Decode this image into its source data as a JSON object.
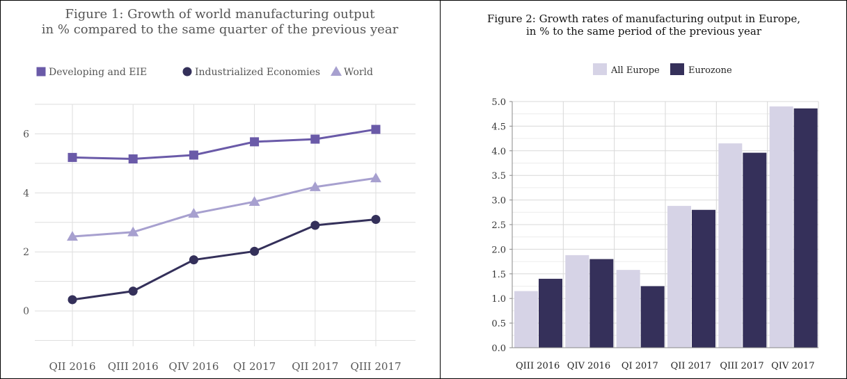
{
  "chart_data": [
    {
      "type": "line",
      "title_line1": "Figure 1: Growth of world manufacturing output",
      "title_line2": "in % compared to the same quarter of the previous year",
      "categories": [
        "QII 2016",
        "QIII 2016",
        "QIV 2016",
        "QI 2017",
        "QII 2017",
        "QIII 2017"
      ],
      "series": [
        {
          "name": "Developing and EIE",
          "values": [
            5.2,
            5.15,
            5.28,
            5.73,
            5.82,
            6.15
          ],
          "color": "#6a5aa8",
          "marker": "square"
        },
        {
          "name": "Industrialized Economies",
          "values": [
            0.38,
            0.67,
            1.73,
            2.02,
            2.9,
            3.1
          ],
          "color": "#34305a",
          "marker": "circle"
        },
        {
          "name": "World",
          "values": [
            2.52,
            2.67,
            3.3,
            3.7,
            4.2,
            4.5
          ],
          "color": "#a7a0cf",
          "marker": "triangle"
        }
      ],
      "yticks": [
        0,
        2,
        4,
        6
      ],
      "ylim": [
        -1.2,
        7
      ],
      "grid": true,
      "legend_position": "top"
    },
    {
      "type": "bar",
      "title_line1": "Figure 2: Growth rates of manufacturing output in Europe,",
      "title_line2": "in % to the same period of the previous year",
      "categories": [
        "QIII 2016",
        "QIV 2016",
        "QI 2017",
        "QII 2017",
        "QIII 2017",
        "QIV 2017"
      ],
      "series": [
        {
          "name": "All Europe",
          "values": [
            1.15,
            1.88,
            1.58,
            2.88,
            4.15,
            4.9
          ],
          "color": "#d6d3e6"
        },
        {
          "name": "Eurozone",
          "values": [
            1.4,
            1.8,
            1.25,
            2.8,
            3.96,
            4.86
          ],
          "color": "#35305a"
        }
      ],
      "yticks": [
        "0.0",
        "0.5",
        "1.0",
        "1.5",
        "2.0",
        "2.5",
        "3.0",
        "3.5",
        "4.0",
        "4.5",
        "5.0"
      ],
      "ylim": [
        0,
        5
      ],
      "grid": true,
      "legend_position": "top"
    }
  ]
}
